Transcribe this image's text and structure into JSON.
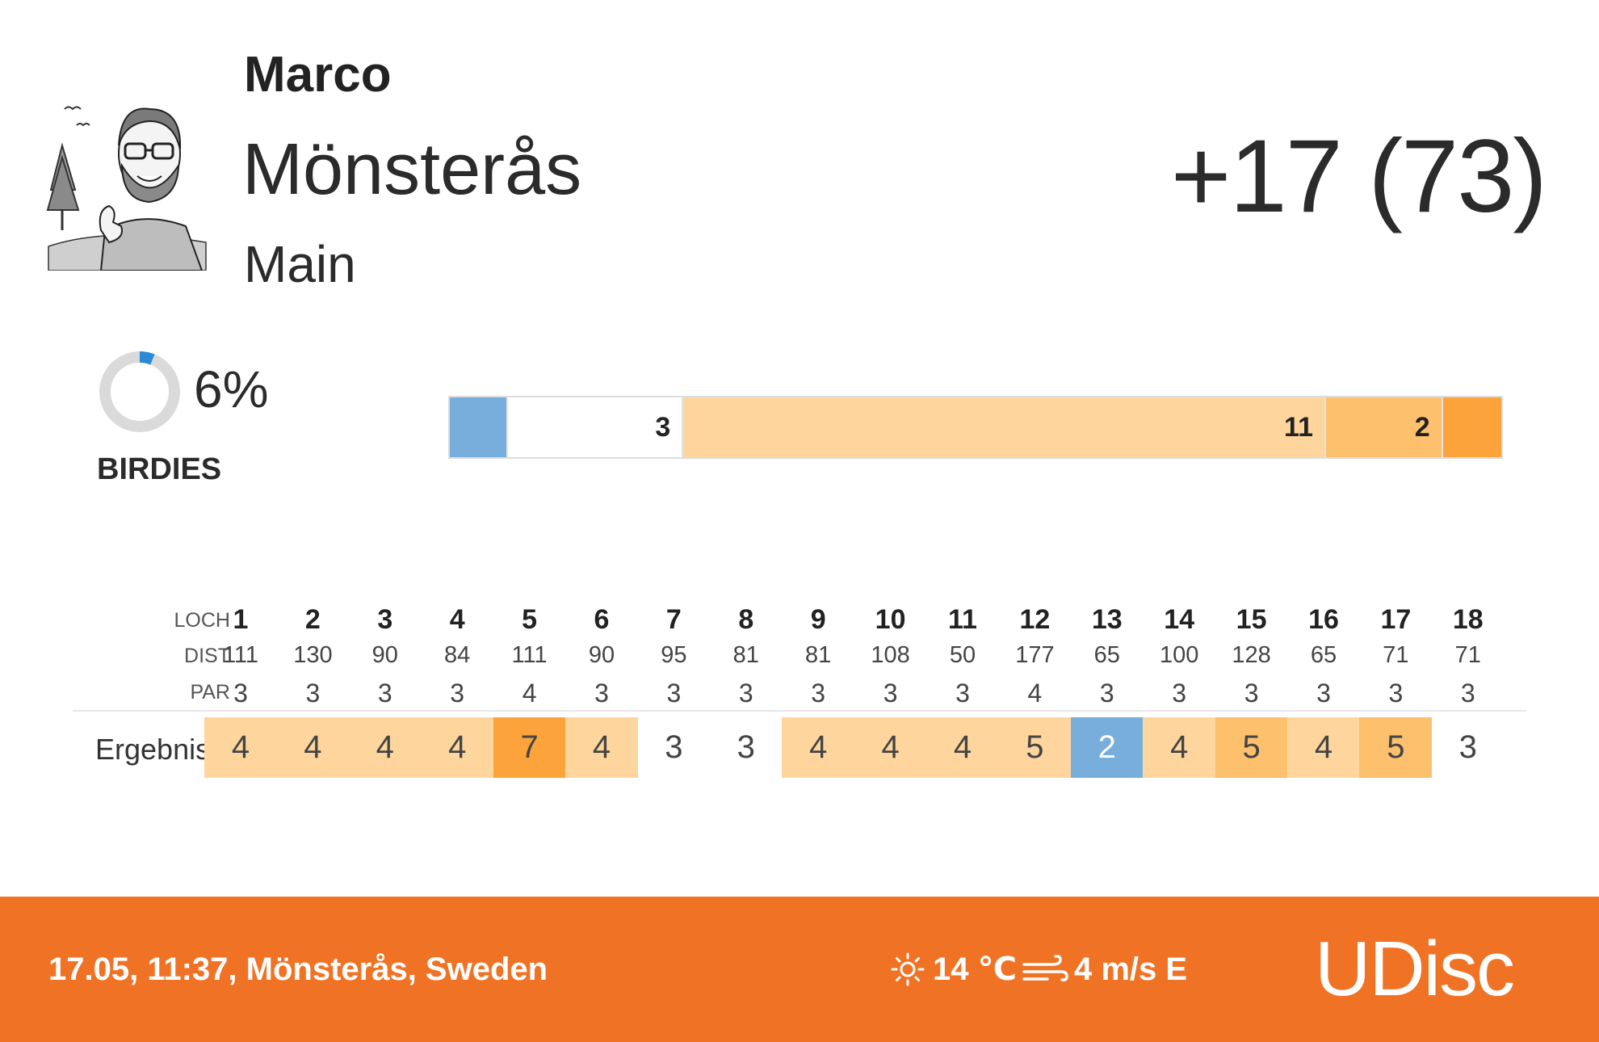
{
  "header": {
    "player_name": "Marco",
    "course_name": "Mönsterås",
    "layout_name": "Main",
    "total_score": "+17 (73)"
  },
  "birdies": {
    "percent_text": "6%",
    "fraction": 0.06,
    "label": "BIRDIES"
  },
  "score_distribution": [
    {
      "type": "birdie",
      "count": 1,
      "label": "",
      "color": "#78aedc"
    },
    {
      "type": "par",
      "count": 3,
      "label": "3",
      "color": "#ffffff"
    },
    {
      "type": "bogey",
      "count": 11,
      "label": "11",
      "color": "#fed69d"
    },
    {
      "type": "double_bogey",
      "count": 2,
      "label": "2",
      "color": "#fdc06d"
    },
    {
      "type": "triple_bogey_plus",
      "count": 1,
      "label": "",
      "color": "#fca43b"
    }
  ],
  "scorecard": {
    "row_labels": {
      "hole": "LOCH",
      "dist": "DIST",
      "par": "PAR",
      "result": "Ergebnis"
    },
    "holes": [
      {
        "hole": "1",
        "dist": "111",
        "par": "3",
        "score": "4",
        "color": "#fed69d"
      },
      {
        "hole": "2",
        "dist": "130",
        "par": "3",
        "score": "4",
        "color": "#fed69d"
      },
      {
        "hole": "3",
        "dist": "90",
        "par": "3",
        "score": "4",
        "color": "#fed69d"
      },
      {
        "hole": "4",
        "dist": "84",
        "par": "3",
        "score": "4",
        "color": "#fed69d"
      },
      {
        "hole": "5",
        "dist": "111",
        "par": "4",
        "score": "7",
        "color": "#fca43b"
      },
      {
        "hole": "6",
        "dist": "90",
        "par": "3",
        "score": "4",
        "color": "#fed69d"
      },
      {
        "hole": "7",
        "dist": "95",
        "par": "3",
        "score": "3",
        "color": ""
      },
      {
        "hole": "8",
        "dist": "81",
        "par": "3",
        "score": "3",
        "color": ""
      },
      {
        "hole": "9",
        "dist": "81",
        "par": "3",
        "score": "4",
        "color": "#fed69d"
      },
      {
        "hole": "10",
        "dist": "108",
        "par": "3",
        "score": "4",
        "color": "#fed69d"
      },
      {
        "hole": "11",
        "dist": "50",
        "par": "3",
        "score": "4",
        "color": "#fed69d"
      },
      {
        "hole": "12",
        "dist": "177",
        "par": "4",
        "score": "5",
        "color": "#fed69d"
      },
      {
        "hole": "13",
        "dist": "65",
        "par": "3",
        "score": "2",
        "color": "#78aedc"
      },
      {
        "hole": "14",
        "dist": "100",
        "par": "3",
        "score": "4",
        "color": "#fed69d"
      },
      {
        "hole": "15",
        "dist": "128",
        "par": "3",
        "score": "5",
        "color": "#fdc06d"
      },
      {
        "hole": "16",
        "dist": "65",
        "par": "3",
        "score": "4",
        "color": "#fed69d"
      },
      {
        "hole": "17",
        "dist": "71",
        "par": "3",
        "score": "5",
        "color": "#fdc06d"
      },
      {
        "hole": "18",
        "dist": "71",
        "par": "3",
        "score": "3",
        "color": ""
      }
    ]
  },
  "footer": {
    "info": "17.05, 11:37, Mönsterås, Sweden",
    "temperature": "14 ℃",
    "wind": "4 m/s E",
    "brand": "UDisc",
    "background_color": "#f07325",
    "icons": [
      "sun-icon",
      "wind-icon"
    ]
  }
}
